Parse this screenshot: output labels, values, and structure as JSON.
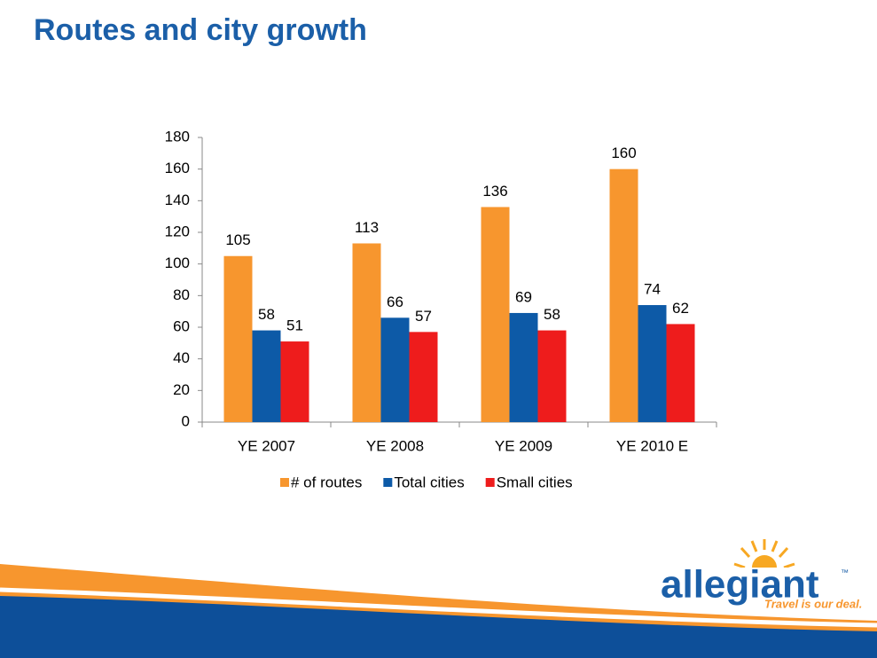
{
  "chart_data": {
    "type": "bar",
    "title": "Routes and city growth",
    "categories": [
      "YE 2007",
      "YE 2008",
      "YE 2009",
      "YE 2010 E"
    ],
    "series": [
      {
        "name": "# of routes",
        "color": "#f7962e",
        "values": [
          105,
          113,
          136,
          160
        ]
      },
      {
        "name": "Total cities",
        "color": "#0d5aa7",
        "values": [
          58,
          66,
          69,
          74
        ]
      },
      {
        "name": "Small cities",
        "color": "#ee1c1c",
        "values": [
          51,
          57,
          58,
          62
        ]
      }
    ],
    "ylim": [
      0,
      180
    ],
    "yticks": [
      0,
      20,
      40,
      60,
      80,
      100,
      120,
      140,
      160,
      180
    ],
    "grid": false,
    "legend": "bottom"
  },
  "logo": {
    "name": "allegiant",
    "tm": "™",
    "tagline": "Travel is our deal."
  }
}
